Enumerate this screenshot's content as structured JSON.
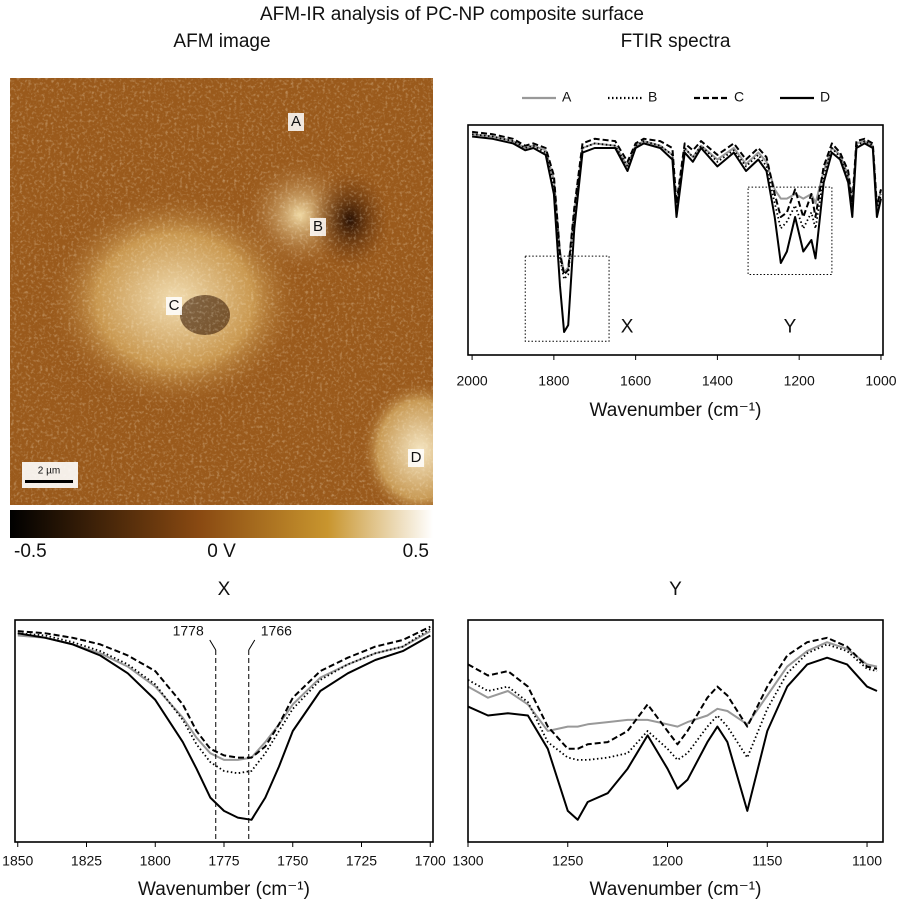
{
  "title": "AFM-IR analysis of PC-NP composite surface",
  "chart_data": [
    {
      "type": "image",
      "title": "AFM image",
      "scale_bar": "2 µm",
      "point_labels": [
        "A",
        "B",
        "C",
        "D"
      ],
      "colorbar": {
        "lim": [
          -0.5,
          0.5
        ],
        "ticks": [
          -0.5,
          {
            "value": 0,
            "label": "0 V"
          },
          0.5
        ]
      }
    },
    {
      "type": "line",
      "title": "FTIR spectra",
      "x_label": "Wavenumber (cm⁻¹)",
      "xlim": [
        2010,
        995
      ],
      "xticks": [
        2000,
        1800,
        1600,
        1400,
        1200,
        1000
      ],
      "ylim": [
        0,
        1
      ],
      "legend": "top",
      "x": [
        2000,
        1950,
        1900,
        1870,
        1850,
        1820,
        1800,
        1785,
        1775,
        1765,
        1750,
        1730,
        1700,
        1650,
        1620,
        1600,
        1580,
        1540,
        1510,
        1500,
        1480,
        1460,
        1440,
        1400,
        1360,
        1330,
        1300,
        1280,
        1260,
        1245,
        1230,
        1210,
        1190,
        1170,
        1160,
        1140,
        1120,
        1100,
        1080,
        1070,
        1060,
        1040,
        1020,
        1010,
        1000
      ],
      "series": [
        {
          "name": "A",
          "color": "#999999",
          "dash": "solid",
          "values": [
            0.96,
            0.95,
            0.93,
            0.9,
            0.91,
            0.89,
            0.76,
            0.45,
            0.36,
            0.38,
            0.62,
            0.9,
            0.92,
            0.91,
            0.82,
            0.91,
            0.93,
            0.91,
            0.87,
            0.64,
            0.9,
            0.86,
            0.91,
            0.85,
            0.9,
            0.83,
            0.88,
            0.84,
            0.72,
            0.68,
            0.68,
            0.7,
            0.68,
            0.7,
            0.66,
            0.8,
            0.9,
            0.87,
            0.78,
            0.64,
            0.92,
            0.93,
            0.91,
            0.64,
            0.72
          ]
        },
        {
          "name": "B",
          "color": "#000000",
          "dash": "dotted",
          "values": [
            0.96,
            0.95,
            0.93,
            0.9,
            0.91,
            0.88,
            0.74,
            0.42,
            0.33,
            0.35,
            0.6,
            0.9,
            0.92,
            0.91,
            0.82,
            0.91,
            0.93,
            0.91,
            0.87,
            0.63,
            0.9,
            0.86,
            0.91,
            0.84,
            0.89,
            0.82,
            0.87,
            0.82,
            0.66,
            0.55,
            0.58,
            0.65,
            0.55,
            0.62,
            0.55,
            0.78,
            0.9,
            0.86,
            0.77,
            0.63,
            0.91,
            0.93,
            0.91,
            0.62,
            0.7
          ]
        },
        {
          "name": "C",
          "color": "#000000",
          "dash": "dashed",
          "values": [
            0.97,
            0.96,
            0.94,
            0.91,
            0.92,
            0.9,
            0.78,
            0.44,
            0.35,
            0.37,
            0.64,
            0.92,
            0.94,
            0.93,
            0.84,
            0.92,
            0.94,
            0.93,
            0.9,
            0.66,
            0.92,
            0.89,
            0.93,
            0.87,
            0.92,
            0.85,
            0.9,
            0.86,
            0.7,
            0.6,
            0.62,
            0.72,
            0.6,
            0.7,
            0.6,
            0.82,
            0.92,
            0.88,
            0.8,
            0.66,
            0.93,
            0.94,
            0.92,
            0.65,
            0.72
          ]
        },
        {
          "name": "D",
          "color": "#000000",
          "dash": "solid",
          "values": [
            0.95,
            0.94,
            0.92,
            0.89,
            0.9,
            0.87,
            0.7,
            0.3,
            0.1,
            0.13,
            0.55,
            0.88,
            0.9,
            0.9,
            0.8,
            0.9,
            0.92,
            0.9,
            0.85,
            0.6,
            0.88,
            0.84,
            0.9,
            0.82,
            0.88,
            0.8,
            0.85,
            0.8,
            0.6,
            0.4,
            0.45,
            0.6,
            0.45,
            0.5,
            0.42,
            0.75,
            0.88,
            0.85,
            0.75,
            0.6,
            0.9,
            0.92,
            0.9,
            0.6,
            0.68
          ]
        }
      ],
      "regions": [
        {
          "label": "X",
          "from": 1870,
          "to": 1665
        },
        {
          "label": "Y",
          "from": 1325,
          "to": 1120
        }
      ]
    },
    {
      "type": "line",
      "title": "X",
      "x_label": "Wavenumber (cm⁻¹)",
      "xlim": [
        1851,
        1699
      ],
      "xticks": [
        1850,
        1825,
        1800,
        1775,
        1750,
        1725,
        1700
      ],
      "ylim": [
        0,
        1
      ],
      "x": [
        1850,
        1840,
        1830,
        1820,
        1810,
        1800,
        1790,
        1785,
        1780,
        1775,
        1770,
        1765,
        1760,
        1755,
        1750,
        1740,
        1730,
        1720,
        1710,
        1700
      ],
      "series": [
        {
          "name": "A",
          "color": "#999999",
          "dash": "solid",
          "values": [
            0.93,
            0.92,
            0.89,
            0.85,
            0.79,
            0.7,
            0.56,
            0.47,
            0.4,
            0.37,
            0.37,
            0.38,
            0.45,
            0.53,
            0.62,
            0.74,
            0.8,
            0.85,
            0.88,
            0.95
          ]
        },
        {
          "name": "B",
          "color": "#000000",
          "dash": "dotted",
          "values": [
            0.94,
            0.93,
            0.9,
            0.86,
            0.8,
            0.71,
            0.55,
            0.44,
            0.36,
            0.32,
            0.31,
            0.32,
            0.4,
            0.5,
            0.6,
            0.73,
            0.8,
            0.85,
            0.88,
            0.96
          ]
        },
        {
          "name": "C",
          "color": "#000000",
          "dash": "dashed",
          "values": [
            0.95,
            0.94,
            0.92,
            0.89,
            0.84,
            0.77,
            0.62,
            0.5,
            0.42,
            0.39,
            0.38,
            0.38,
            0.43,
            0.53,
            0.65,
            0.77,
            0.83,
            0.88,
            0.91,
            0.97
          ]
        },
        {
          "name": "D",
          "color": "#000000",
          "dash": "solid",
          "values": [
            0.94,
            0.92,
            0.89,
            0.84,
            0.76,
            0.64,
            0.45,
            0.33,
            0.2,
            0.14,
            0.11,
            0.1,
            0.2,
            0.34,
            0.5,
            0.68,
            0.76,
            0.82,
            0.86,
            0.93
          ]
        }
      ],
      "vlines": [
        1778,
        1766
      ]
    },
    {
      "type": "line",
      "title": "Y",
      "x_label": "Wavenumber (cm⁻¹)",
      "xlim": [
        1300,
        1092
      ],
      "xticks": [
        1300,
        1250,
        1200,
        1150,
        1100
      ],
      "ylim": [
        0,
        1
      ],
      "x": [
        1300,
        1290,
        1280,
        1270,
        1260,
        1250,
        1245,
        1240,
        1230,
        1220,
        1210,
        1200,
        1195,
        1190,
        1180,
        1175,
        1170,
        1160,
        1150,
        1140,
        1130,
        1120,
        1110,
        1100,
        1095
      ],
      "series": [
        {
          "name": "A",
          "color": "#999999",
          "dash": "solid",
          "values": [
            0.7,
            0.65,
            0.68,
            0.62,
            0.5,
            0.52,
            0.52,
            0.53,
            0.54,
            0.55,
            0.55,
            0.53,
            0.52,
            0.54,
            0.57,
            0.6,
            0.59,
            0.53,
            0.66,
            0.79,
            0.86,
            0.9,
            0.87,
            0.8,
            0.79
          ]
        },
        {
          "name": "B",
          "color": "#000000",
          "dash": "dotted",
          "values": [
            0.73,
            0.68,
            0.7,
            0.63,
            0.45,
            0.38,
            0.37,
            0.37,
            0.38,
            0.4,
            0.5,
            0.42,
            0.37,
            0.4,
            0.52,
            0.57,
            0.52,
            0.38,
            0.6,
            0.76,
            0.85,
            0.89,
            0.86,
            0.78,
            0.77
          ]
        },
        {
          "name": "C",
          "color": "#000000",
          "dash": "dashed",
          "values": [
            0.8,
            0.75,
            0.77,
            0.7,
            0.52,
            0.42,
            0.42,
            0.44,
            0.45,
            0.5,
            0.62,
            0.5,
            0.44,
            0.5,
            0.65,
            0.7,
            0.66,
            0.52,
            0.7,
            0.84,
            0.9,
            0.92,
            0.88,
            0.79,
            0.78
          ]
        },
        {
          "name": "D",
          "color": "#000000",
          "dash": "solid",
          "values": [
            0.61,
            0.57,
            0.58,
            0.57,
            0.42,
            0.14,
            0.1,
            0.18,
            0.22,
            0.33,
            0.48,
            0.33,
            0.24,
            0.28,
            0.45,
            0.52,
            0.45,
            0.14,
            0.5,
            0.7,
            0.8,
            0.83,
            0.8,
            0.7,
            0.68
          ]
        }
      ]
    }
  ]
}
